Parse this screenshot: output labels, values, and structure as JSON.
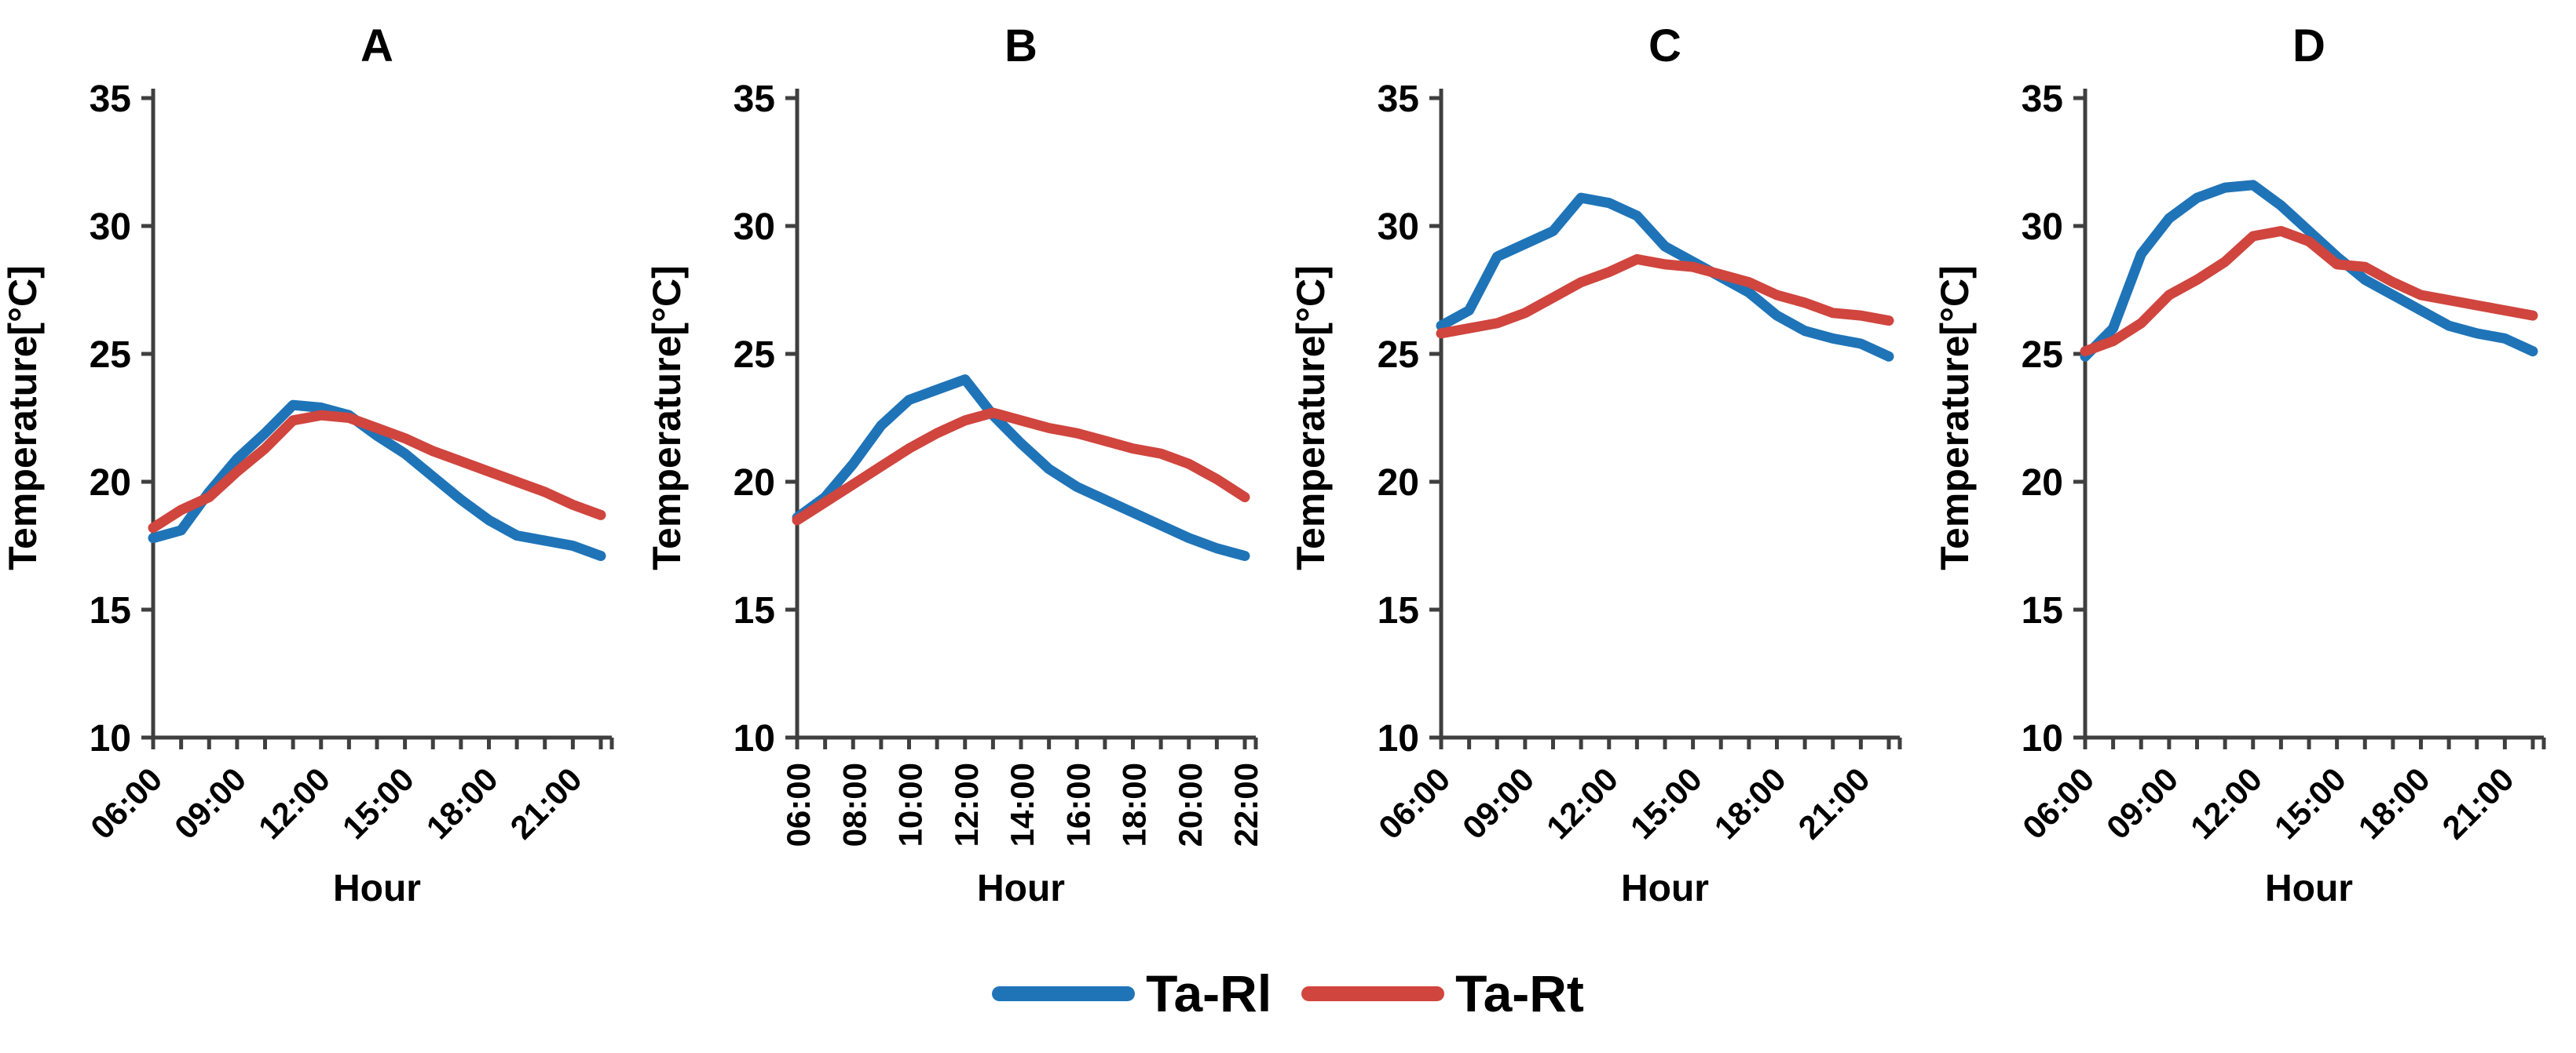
{
  "figure": {
    "legend": [
      {
        "label": "Ta-Rl",
        "color": "#1F74B8"
      },
      {
        "label": "Ta-Rt",
        "color": "#D0453E"
      }
    ],
    "axis_color": "#3f3f3f",
    "text_color": "#000000",
    "background": "#ffffff"
  },
  "chart_data": [
    {
      "type": "line",
      "title": "A",
      "xlabel": "Hour",
      "ylabel": "Temperature[°C]",
      "ylim": [
        10,
        35
      ],
      "yticks": [
        10,
        15,
        20,
        25,
        30,
        35
      ],
      "x": [
        "06:00",
        "07:00",
        "08:00",
        "09:00",
        "10:00",
        "11:00",
        "12:00",
        "13:00",
        "14:00",
        "15:00",
        "16:00",
        "17:00",
        "18:00",
        "19:00",
        "20:00",
        "21:00",
        "22:00"
      ],
      "x_tick_labels": [
        "06:00",
        "09:00",
        "12:00",
        "15:00",
        "18:00",
        "21:00"
      ],
      "x_tick_label_indices": [
        0,
        3,
        6,
        9,
        12,
        15
      ],
      "x_tick_label_rotation": -45,
      "grid": false,
      "series": [
        {
          "name": "Ta-Rl",
          "color": "#1F74B8",
          "values": [
            17.8,
            18.1,
            19.6,
            20.9,
            21.9,
            23.0,
            22.9,
            22.6,
            21.8,
            21.1,
            20.2,
            19.3,
            18.5,
            17.9,
            17.7,
            17.5,
            17.1
          ]
        },
        {
          "name": "Ta-Rt",
          "color": "#D0453E",
          "values": [
            18.2,
            18.9,
            19.4,
            20.4,
            21.3,
            22.4,
            22.6,
            22.5,
            22.1,
            21.7,
            21.2,
            20.8,
            20.4,
            20.0,
            19.6,
            19.1,
            18.7
          ]
        }
      ]
    },
    {
      "type": "line",
      "title": "B",
      "xlabel": "Hour",
      "ylabel": "Temperature[°C]",
      "ylim": [
        10,
        35
      ],
      "yticks": [
        10,
        15,
        20,
        25,
        30,
        35
      ],
      "x": [
        "06:00",
        "07:00",
        "08:00",
        "09:00",
        "10:00",
        "11:00",
        "12:00",
        "13:00",
        "14:00",
        "15:00",
        "16:00",
        "17:00",
        "18:00",
        "19:00",
        "20:00",
        "21:00",
        "22:00"
      ],
      "x_tick_labels": [
        "06:00",
        "08:00",
        "10:00",
        "12:00",
        "14:00",
        "16:00",
        "18:00",
        "20:00",
        "22:00"
      ],
      "x_tick_label_indices": [
        0,
        2,
        4,
        6,
        8,
        10,
        12,
        14,
        16
      ],
      "x_tick_label_rotation": -90,
      "grid": false,
      "series": [
        {
          "name": "Ta-Rl",
          "color": "#1F74B8",
          "values": [
            18.6,
            19.4,
            20.7,
            22.2,
            23.2,
            23.6,
            24.0,
            22.6,
            21.5,
            20.5,
            19.8,
            19.3,
            18.8,
            18.3,
            17.8,
            17.4,
            17.1
          ]
        },
        {
          "name": "Ta-Rt",
          "color": "#D0453E",
          "values": [
            18.5,
            19.2,
            19.9,
            20.6,
            21.3,
            21.9,
            22.4,
            22.7,
            22.4,
            22.1,
            21.9,
            21.6,
            21.3,
            21.1,
            20.7,
            20.1,
            19.4
          ]
        }
      ]
    },
    {
      "type": "line",
      "title": "C",
      "xlabel": "Hour",
      "ylabel": "Temperature[°C]",
      "ylim": [
        10,
        35
      ],
      "yticks": [
        10,
        15,
        20,
        25,
        30,
        35
      ],
      "x": [
        "06:00",
        "07:00",
        "08:00",
        "09:00",
        "10:00",
        "11:00",
        "12:00",
        "13:00",
        "14:00",
        "15:00",
        "16:00",
        "17:00",
        "18:00",
        "19:00",
        "20:00",
        "21:00",
        "22:00"
      ],
      "x_tick_labels": [
        "06:00",
        "09:00",
        "12:00",
        "15:00",
        "18:00",
        "21:00"
      ],
      "x_tick_label_indices": [
        0,
        3,
        6,
        9,
        12,
        15
      ],
      "x_tick_label_rotation": -45,
      "grid": false,
      "series": [
        {
          "name": "Ta-Rl",
          "color": "#1F74B8",
          "values": [
            26.1,
            26.7,
            28.8,
            29.3,
            29.8,
            31.1,
            30.9,
            30.4,
            29.2,
            28.6,
            28.0,
            27.4,
            26.5,
            25.9,
            25.6,
            25.4,
            24.9
          ]
        },
        {
          "name": "Ta-Rt",
          "color": "#D0453E",
          "values": [
            25.8,
            26.0,
            26.2,
            26.6,
            27.2,
            27.8,
            28.2,
            28.7,
            28.5,
            28.4,
            28.1,
            27.8,
            27.3,
            27.0,
            26.6,
            26.5,
            26.3
          ]
        }
      ]
    },
    {
      "type": "line",
      "title": "D",
      "xlabel": "Hour",
      "ylabel": "Temperature[°C]",
      "ylim": [
        10,
        35
      ],
      "yticks": [
        10,
        15,
        20,
        25,
        30,
        35
      ],
      "x": [
        "06:00",
        "07:00",
        "08:00",
        "09:00",
        "10:00",
        "11:00",
        "12:00",
        "13:00",
        "14:00",
        "15:00",
        "16:00",
        "17:00",
        "18:00",
        "19:00",
        "20:00",
        "21:00",
        "22:00"
      ],
      "x_tick_labels": [
        "06:00",
        "09:00",
        "12:00",
        "15:00",
        "18:00",
        "21:00"
      ],
      "x_tick_label_indices": [
        0,
        3,
        6,
        9,
        12,
        15
      ],
      "x_tick_label_rotation": -45,
      "grid": false,
      "series": [
        {
          "name": "Ta-Rl",
          "color": "#1F74B8",
          "values": [
            24.9,
            26.0,
            28.9,
            30.3,
            31.1,
            31.5,
            31.6,
            30.8,
            29.8,
            28.8,
            27.9,
            27.3,
            26.7,
            26.1,
            25.8,
            25.6,
            25.1
          ]
        },
        {
          "name": "Ta-Rt",
          "color": "#D0453E",
          "values": [
            25.1,
            25.5,
            26.2,
            27.3,
            27.9,
            28.6,
            29.6,
            29.8,
            29.4,
            28.5,
            28.4,
            27.8,
            27.3,
            27.1,
            26.9,
            26.7,
            26.5
          ]
        }
      ]
    }
  ]
}
